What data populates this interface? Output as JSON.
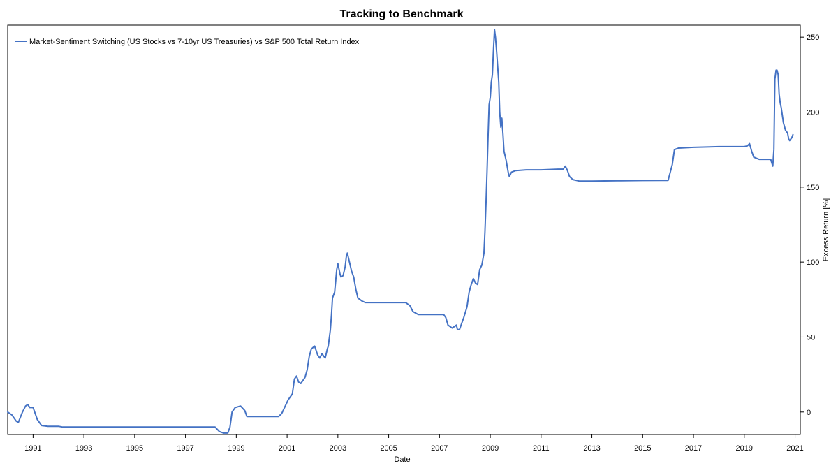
{
  "chart_data": {
    "type": "line",
    "title": "Tracking to Benchmark",
    "xlabel": "Date",
    "ylabel": "Excess Return [%]",
    "x_ticks": [
      "1991",
      "1993",
      "1995",
      "1997",
      "1999",
      "2001",
      "2003",
      "2005",
      "2007",
      "2009",
      "2011",
      "2013",
      "2015",
      "2017",
      "2019",
      "2021"
    ],
    "y_ticks": [
      0,
      50,
      100,
      150,
      200,
      250
    ],
    "xlim": [
      "1990-01-01",
      "2021-03-15"
    ],
    "ylim": [
      -15,
      258
    ],
    "y_axis_position": "right",
    "grid": false,
    "legend_position": "top-left",
    "series": [
      {
        "name": "Market-Sentiment Switching (US Stocks vs 7-10yr US Treasuries) vs S&P 500 Total Return Index",
        "color": "#4472C4",
        "points": [
          [
            "1990-01-01",
            0
          ],
          [
            "1990-03-01",
            -2
          ],
          [
            "1990-05-01",
            -6
          ],
          [
            "1990-06-01",
            -7
          ],
          [
            "1990-08-01",
            0
          ],
          [
            "1990-09-15",
            4
          ],
          [
            "1990-10-15",
            5
          ],
          [
            "1990-11-15",
            3
          ],
          [
            "1991-01-01",
            3
          ],
          [
            "1991-03-01",
            -5
          ],
          [
            "1991-05-01",
            -9
          ],
          [
            "1991-08-01",
            -9.5
          ],
          [
            "1992-01-01",
            -9.5
          ],
          [
            "1992-03-01",
            -10
          ],
          [
            "1993-01-01",
            -10
          ],
          [
            "1995-01-01",
            -10
          ],
          [
            "1997-01-01",
            -10
          ],
          [
            "1998-01-01",
            -10
          ],
          [
            "1998-03-01",
            -10
          ],
          [
            "1998-05-01",
            -13
          ],
          [
            "1998-07-01",
            -14
          ],
          [
            "1998-09-01",
            -14
          ],
          [
            "1998-10-01",
            -10
          ],
          [
            "1998-11-01",
            0
          ],
          [
            "1998-12-15",
            3
          ],
          [
            "1999-03-01",
            4
          ],
          [
            "1999-05-01",
            1
          ],
          [
            "1999-06-01",
            -3
          ],
          [
            "1999-09-01",
            -3
          ],
          [
            "2000-06-01",
            -3
          ],
          [
            "2000-09-01",
            -3
          ],
          [
            "2000-10-15",
            -1
          ],
          [
            "2000-12-15",
            5
          ],
          [
            "2001-01-15",
            8
          ],
          [
            "2001-03-15",
            12
          ],
          [
            "2001-04-15",
            22
          ],
          [
            "2001-05-15",
            24
          ],
          [
            "2001-06-15",
            20
          ],
          [
            "2001-07-15",
            19
          ],
          [
            "2001-09-15",
            23
          ],
          [
            "2001-10-15",
            28
          ],
          [
            "2001-11-15",
            37
          ],
          [
            "2001-12-15",
            42
          ],
          [
            "2002-02-01",
            44
          ],
          [
            "2002-03-15",
            38
          ],
          [
            "2002-04-15",
            36
          ],
          [
            "2002-05-15",
            39
          ],
          [
            "2002-06-15",
            37
          ],
          [
            "2002-07-01",
            36
          ],
          [
            "2002-08-01",
            42
          ],
          [
            "2002-08-15",
            44
          ],
          [
            "2002-09-15",
            55
          ],
          [
            "2002-10-01",
            65
          ],
          [
            "2002-10-15",
            76
          ],
          [
            "2002-11-15",
            80
          ],
          [
            "2002-12-15",
            95
          ],
          [
            "2003-01-01",
            99
          ],
          [
            "2003-02-01",
            92
          ],
          [
            "2003-02-15",
            90
          ],
          [
            "2003-03-15",
            91
          ],
          [
            "2003-04-15",
            97
          ],
          [
            "2003-05-01",
            104
          ],
          [
            "2003-05-15",
            106
          ],
          [
            "2003-06-15",
            100
          ],
          [
            "2003-07-15",
            94
          ],
          [
            "2003-08-15",
            90
          ],
          [
            "2003-09-15",
            82
          ],
          [
            "2003-10-15",
            76
          ],
          [
            "2003-12-15",
            74
          ],
          [
            "2004-02-01",
            73
          ],
          [
            "2005-01-01",
            73
          ],
          [
            "2005-06-01",
            73
          ],
          [
            "2005-09-01",
            73
          ],
          [
            "2005-11-01",
            71
          ],
          [
            "2005-12-15",
            67
          ],
          [
            "2006-03-01",
            65
          ],
          [
            "2006-06-01",
            65
          ],
          [
            "2007-01-01",
            65
          ],
          [
            "2007-03-01",
            65
          ],
          [
            "2007-04-01",
            63
          ],
          [
            "2007-05-01",
            58
          ],
          [
            "2007-07-01",
            56
          ],
          [
            "2007-08-01",
            57
          ],
          [
            "2007-09-01",
            58
          ],
          [
            "2007-09-15",
            55
          ],
          [
            "2007-10-15",
            55
          ],
          [
            "2007-11-15",
            59
          ],
          [
            "2007-12-15",
            63
          ],
          [
            "2008-02-01",
            70
          ],
          [
            "2008-03-01",
            80
          ],
          [
            "2008-04-01",
            85
          ],
          [
            "2008-05-01",
            89
          ],
          [
            "2008-06-01",
            86
          ],
          [
            "2008-07-01",
            85
          ],
          [
            "2008-08-01",
            95
          ],
          [
            "2008-09-01",
            98
          ],
          [
            "2008-10-01",
            106
          ],
          [
            "2008-10-15",
            120
          ],
          [
            "2008-11-01",
            140
          ],
          [
            "2008-11-15",
            160
          ],
          [
            "2008-12-01",
            185
          ],
          [
            "2008-12-15",
            205
          ],
          [
            "2009-01-01",
            210
          ],
          [
            "2009-01-15",
            220
          ],
          [
            "2009-02-01",
            225
          ],
          [
            "2009-02-15",
            240
          ],
          [
            "2009-03-01",
            255
          ],
          [
            "2009-03-15",
            250
          ],
          [
            "2009-04-01",
            240
          ],
          [
            "2009-05-01",
            220
          ],
          [
            "2009-05-15",
            200
          ],
          [
            "2009-06-01",
            190
          ],
          [
            "2009-06-15",
            196
          ],
          [
            "2009-07-01",
            185
          ],
          [
            "2009-07-15",
            174
          ],
          [
            "2009-08-15",
            168
          ],
          [
            "2009-09-15",
            160
          ],
          [
            "2009-10-01",
            157
          ],
          [
            "2009-11-01",
            160
          ],
          [
            "2010-01-01",
            161
          ],
          [
            "2010-06-01",
            161.5
          ],
          [
            "2011-01-01",
            161.5
          ],
          [
            "2011-09-01",
            162
          ],
          [
            "2011-11-15",
            162
          ],
          [
            "2011-12-15",
            164
          ],
          [
            "2012-01-15",
            161
          ],
          [
            "2012-02-15",
            157
          ],
          [
            "2012-04-01",
            155
          ],
          [
            "2012-07-01",
            154
          ],
          [
            "2013-01-01",
            154
          ],
          [
            "2014-01-01",
            154.2
          ],
          [
            "2015-01-01",
            154.4
          ],
          [
            "2015-10-01",
            154.5
          ],
          [
            "2016-01-01",
            154.5
          ],
          [
            "2016-03-01",
            165
          ],
          [
            "2016-04-01",
            175
          ],
          [
            "2016-06-01",
            176
          ],
          [
            "2017-01-01",
            176.5
          ],
          [
            "2018-01-01",
            177
          ],
          [
            "2019-01-01",
            177
          ],
          [
            "2019-02-15",
            177.5
          ],
          [
            "2019-03-15",
            179
          ],
          [
            "2019-04-15",
            174
          ],
          [
            "2019-05-15",
            170
          ],
          [
            "2019-08-01",
            168.5
          ],
          [
            "2020-01-15",
            168.5
          ],
          [
            "2020-02-15",
            164
          ],
          [
            "2020-03-01",
            175
          ],
          [
            "2020-03-15",
            222
          ],
          [
            "2020-04-01",
            228
          ],
          [
            "2020-04-15",
            228
          ],
          [
            "2020-05-01",
            225
          ],
          [
            "2020-05-15",
            212
          ],
          [
            "2020-06-01",
            206
          ],
          [
            "2020-06-15",
            203
          ],
          [
            "2020-07-15",
            193
          ],
          [
            "2020-08-15",
            188
          ],
          [
            "2020-09-15",
            186
          ],
          [
            "2020-10-01",
            182
          ],
          [
            "2020-10-15",
            181
          ],
          [
            "2020-11-15",
            183
          ],
          [
            "2020-12-01",
            185
          ]
        ]
      }
    ]
  }
}
